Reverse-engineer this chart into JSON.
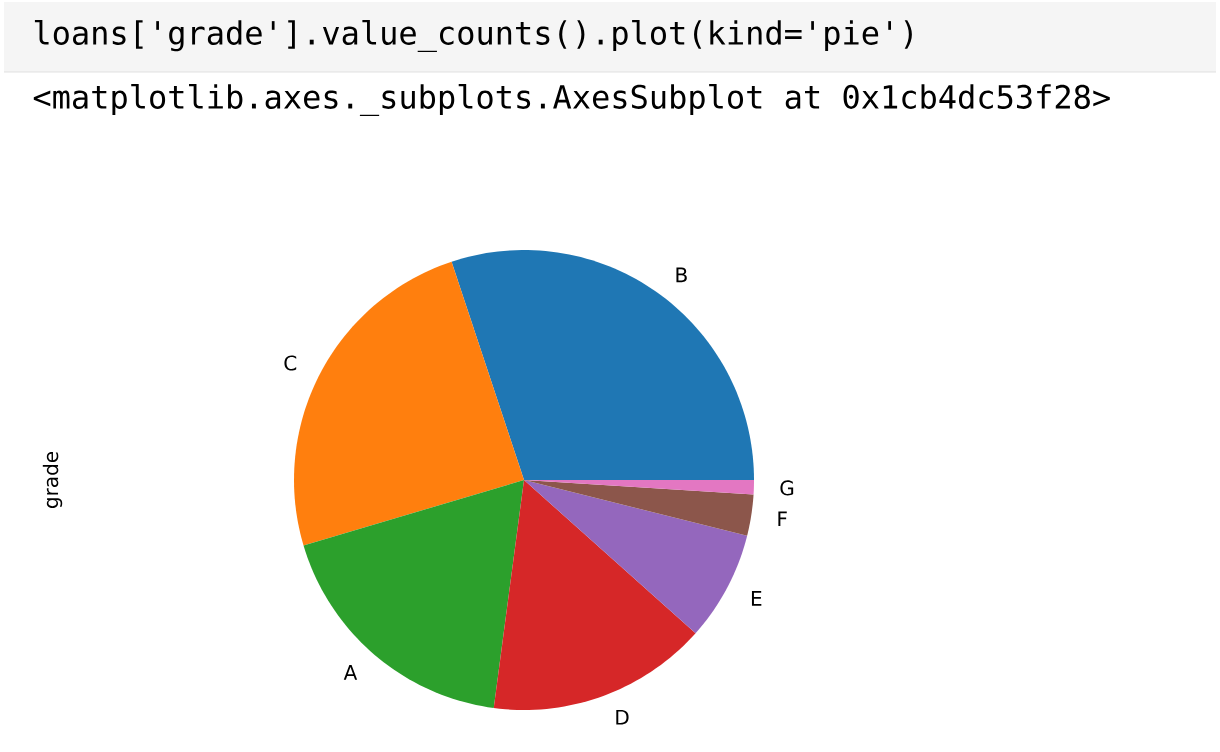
{
  "chart_data": {
    "type": "pie",
    "ylabel": "grade",
    "categories": [
      "B",
      "C",
      "A",
      "D",
      "E",
      "F",
      "G"
    ],
    "values": [
      30.1,
      24.5,
      18.3,
      15.5,
      7.7,
      2.9,
      1.0
    ],
    "colors": [
      "#1f77b4",
      "#ff7f0e",
      "#2ca02c",
      "#d62728",
      "#9467bd",
      "#8c564b",
      "#e377c2"
    ],
    "annotations": [
      "loans['grade'].value_counts().plot(kind='pie')",
      "<matplotlib.axes._subplots.AxesSubplot at 0x1cb4dc53f28>"
    ]
  }
}
